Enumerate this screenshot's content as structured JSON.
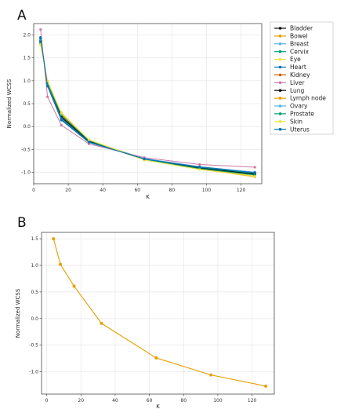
{
  "chart_data": [
    {
      "panel": "A",
      "type": "line",
      "xlabel": "K",
      "ylabel": "Normalized WCSS",
      "xlim": [
        0,
        132
      ],
      "ylim": [
        -1.25,
        2.25
      ],
      "xticks": [
        0,
        20,
        40,
        60,
        80,
        100,
        120
      ],
      "yticks": [
        -1.0,
        -0.5,
        0.0,
        0.5,
        1.0,
        1.5,
        2.0
      ],
      "grid": true,
      "legend_position": "outside-right",
      "x": [
        4,
        8,
        16,
        32,
        64,
        96,
        128
      ],
      "series": [
        {
          "name": "Bladder",
          "color": "#111111",
          "values": [
            1.9,
            0.92,
            0.2,
            -0.33,
            -0.71,
            -0.9,
            -1.05
          ]
        },
        {
          "name": "Bowel",
          "color": "#e69f00",
          "values": [
            1.8,
            0.98,
            0.3,
            -0.3,
            -0.73,
            -0.93,
            -1.1
          ]
        },
        {
          "name": "Breast",
          "color": "#56b4e9",
          "values": [
            1.88,
            0.95,
            0.24,
            -0.31,
            -0.7,
            -0.9,
            -1.03
          ]
        },
        {
          "name": "Cervix",
          "color": "#009e73",
          "values": [
            1.92,
            0.9,
            0.18,
            -0.34,
            -0.7,
            -0.9,
            -1.02
          ]
        },
        {
          "name": "Eye",
          "color": "#f0e442",
          "values": [
            1.78,
            1.0,
            0.28,
            -0.29,
            -0.72,
            -0.94,
            -1.08
          ]
        },
        {
          "name": "Heart",
          "color": "#0072b2",
          "values": [
            1.95,
            0.88,
            0.14,
            -0.35,
            -0.7,
            -0.88,
            -1.0
          ]
        },
        {
          "name": "Kidney",
          "color": "#d55e00",
          "values": [
            1.85,
            0.93,
            0.22,
            -0.32,
            -0.72,
            -0.92,
            -1.06
          ]
        },
        {
          "name": "Liver",
          "color": "#cc79a7",
          "values": [
            2.12,
            0.65,
            0.03,
            -0.38,
            -0.68,
            -0.83,
            -0.89
          ]
        },
        {
          "name": "Lung",
          "color": "#111111",
          "values": [
            1.87,
            0.94,
            0.21,
            -0.32,
            -0.71,
            -0.91,
            -1.04
          ]
        },
        {
          "name": "Lymph node",
          "color": "#e69f00",
          "values": [
            1.82,
            0.97,
            0.27,
            -0.3,
            -0.73,
            -0.93,
            -1.09
          ]
        },
        {
          "name": "Ovary",
          "color": "#56b4e9",
          "values": [
            1.9,
            0.91,
            0.17,
            -0.34,
            -0.7,
            -0.89,
            -1.0
          ]
        },
        {
          "name": "Prostate",
          "color": "#009e73",
          "values": [
            1.83,
            0.96,
            0.25,
            -0.31,
            -0.72,
            -0.92,
            -1.06
          ]
        },
        {
          "name": "Skin",
          "color": "#f0e442",
          "values": [
            1.79,
            0.99,
            0.29,
            -0.29,
            -0.73,
            -0.94,
            -1.09
          ]
        },
        {
          "name": "Uterus",
          "color": "#0072b2",
          "values": [
            1.93,
            0.89,
            0.16,
            -0.34,
            -0.71,
            -0.89,
            -1.01
          ]
        }
      ]
    },
    {
      "panel": "B",
      "type": "line",
      "xlabel": "K",
      "ylabel": "Normalized WCSS",
      "xlim": [
        -3,
        133
      ],
      "ylim": [
        -1.42,
        1.62
      ],
      "xticks": [
        0,
        20,
        40,
        60,
        80,
        100,
        120
      ],
      "yticks": [
        -1.0,
        -0.5,
        0.0,
        0.5,
        1.0,
        1.5
      ],
      "grid": true,
      "x": [
        4,
        8,
        16,
        32,
        64,
        96,
        128
      ],
      "series": [
        {
          "name": "",
          "color": "#e69f00",
          "values": [
            1.5,
            1.02,
            0.61,
            -0.09,
            -0.74,
            -1.06,
            -1.27
          ]
        }
      ]
    }
  ]
}
